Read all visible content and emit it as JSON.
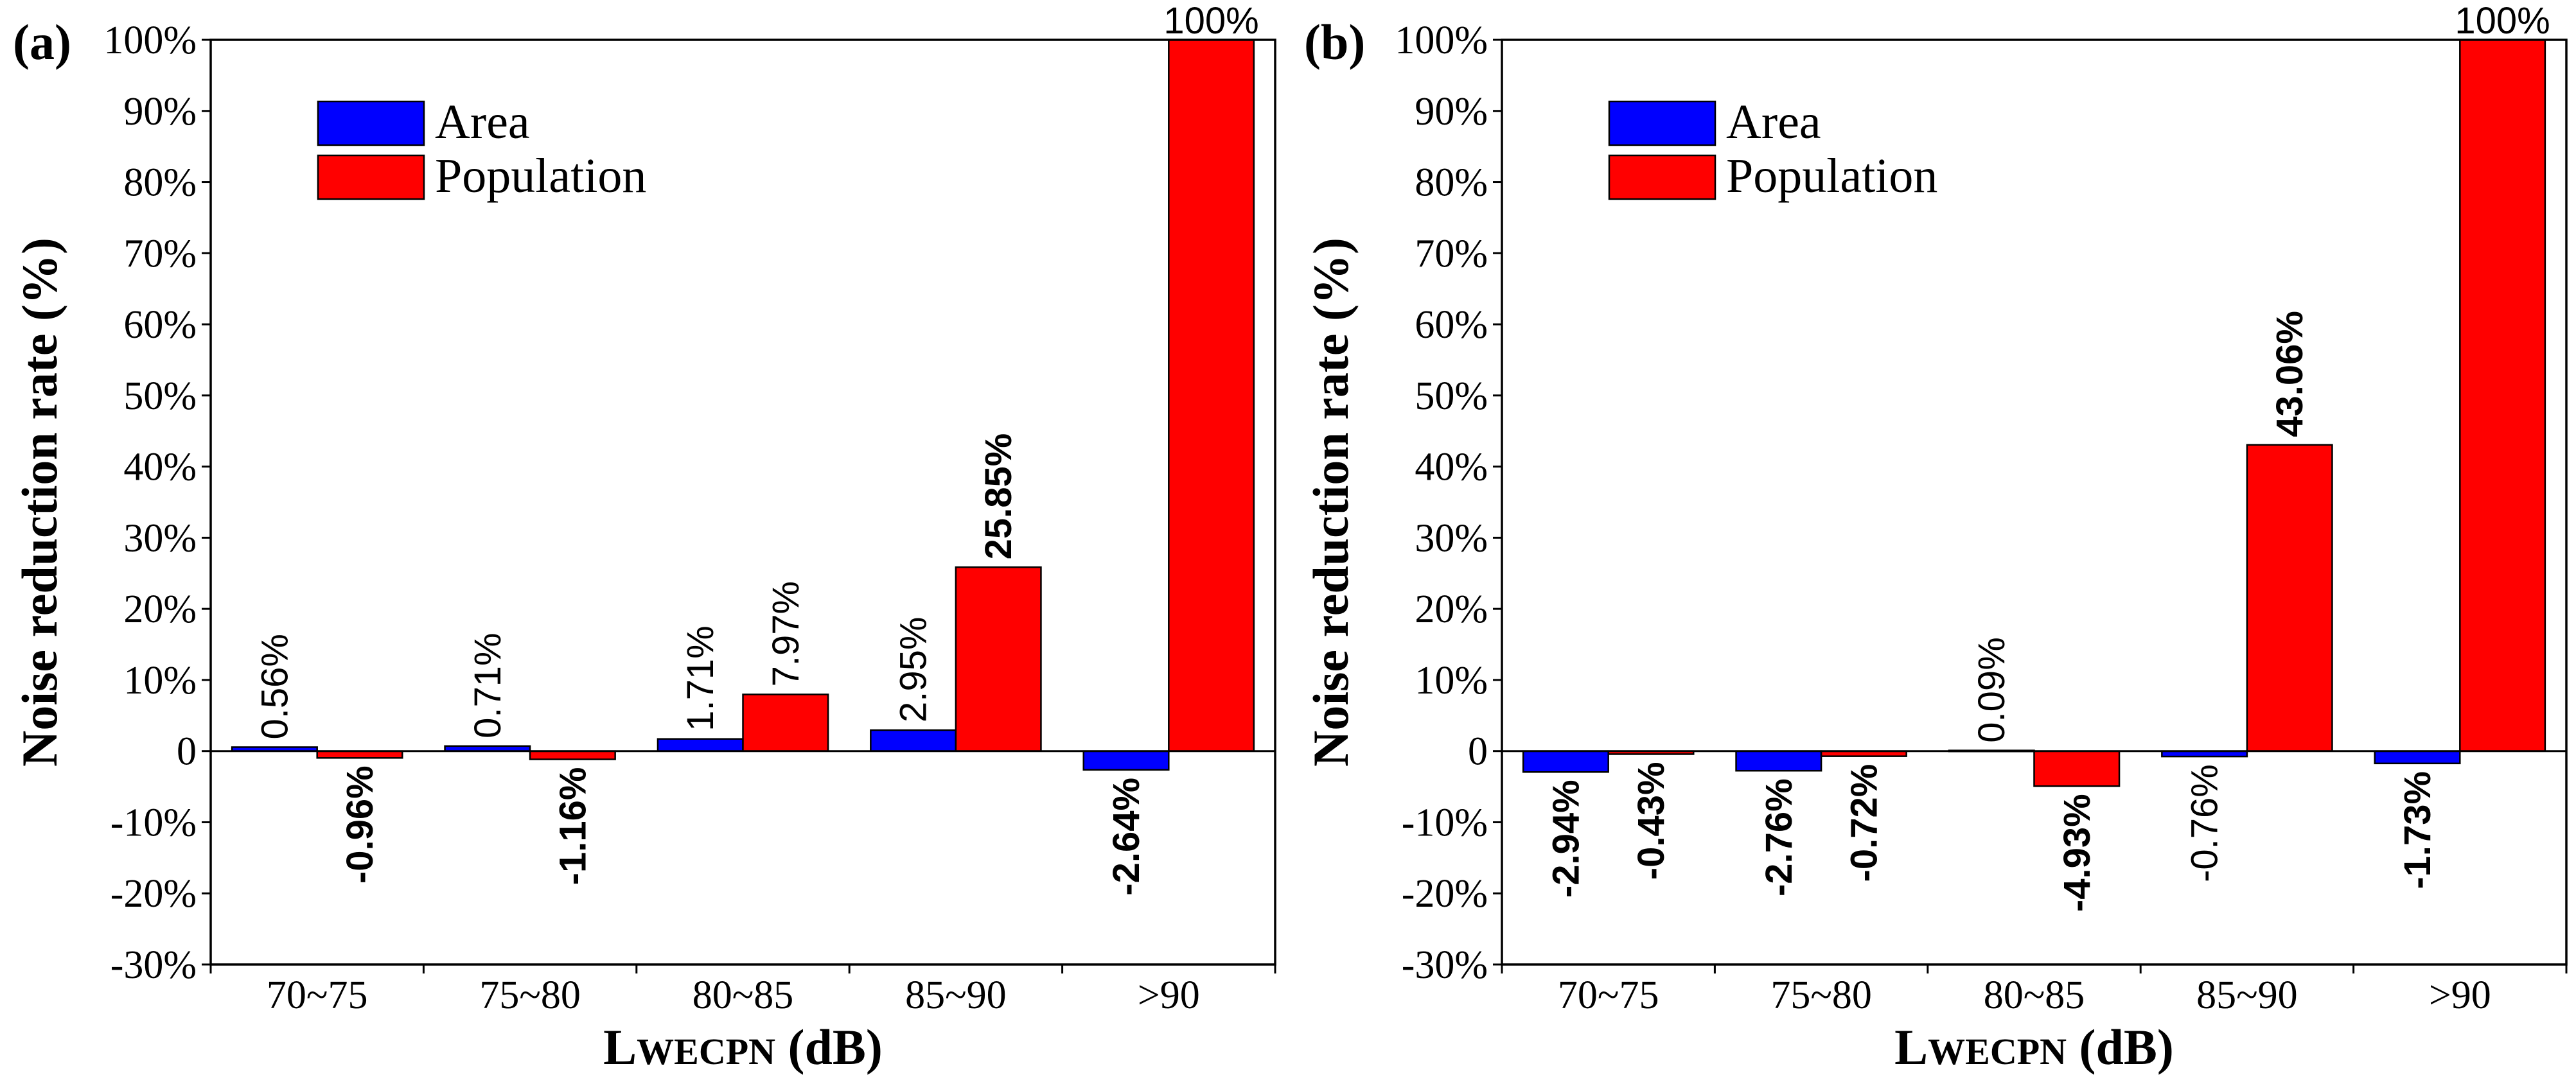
{
  "colors": {
    "area": "#0000ff",
    "population": "#ff0000",
    "axis": "#000000"
  },
  "chart_data": [
    {
      "panel": "(a)",
      "type": "bar",
      "categories": [
        "70~75",
        "75~80",
        "80~85",
        "85~90",
        ">90"
      ],
      "series": [
        {
          "name": "Area",
          "values": [
            0.56,
            0.71,
            1.71,
            2.95,
            -2.64
          ],
          "labels": [
            "0.56%",
            "0.71%",
            "1.71%",
            "2.95%",
            "-2.64%"
          ],
          "label_bold": [
            false,
            false,
            false,
            false,
            true
          ]
        },
        {
          "name": "Population",
          "values": [
            -0.96,
            -1.16,
            7.97,
            25.85,
            100
          ],
          "labels": [
            "-0.96%",
            "-1.16%",
            "7.97%",
            "25.85%",
            "100%"
          ],
          "label_bold": [
            true,
            true,
            false,
            true,
            false
          ]
        }
      ],
      "ylim": [
        -30,
        100
      ],
      "yticks": [
        -30,
        -20,
        -10,
        0,
        10,
        20,
        30,
        40,
        50,
        60,
        70,
        80,
        90,
        100
      ],
      "ytick_labels": [
        "-30%",
        "-20%",
        "-10%",
        "0",
        "10%",
        "20%",
        "30%",
        "40%",
        "50%",
        "60%",
        "70%",
        "80%",
        "90%",
        "100%"
      ],
      "ylabel": "Noise reduction rate (%)",
      "xlabel_main": "L",
      "xlabel_sub": "WECPN",
      "xlabel_unit": " (dB)",
      "legend": [
        "Area",
        "Population"
      ],
      "legend_position": "top-left"
    },
    {
      "panel": "(b)",
      "type": "bar",
      "categories": [
        "70~75",
        "75~80",
        "80~85",
        "85~90",
        ">90"
      ],
      "series": [
        {
          "name": "Area",
          "values": [
            -2.94,
            -2.76,
            0.09,
            -0.76,
            -1.73
          ],
          "labels": [
            "-2.94%",
            "-2.76%",
            "0.09%",
            "-0.76%",
            "-1.73%"
          ],
          "label_bold": [
            true,
            true,
            false,
            false,
            true
          ]
        },
        {
          "name": "Population",
          "values": [
            -0.43,
            -0.72,
            -4.93,
            43.06,
            100
          ],
          "labels": [
            "-0.43%",
            "-0.72%",
            "-4.93%",
            "43.06%",
            "100%"
          ],
          "label_bold": [
            true,
            true,
            true,
            true,
            false
          ]
        }
      ],
      "ylim": [
        -30,
        100
      ],
      "yticks": [
        -30,
        -20,
        -10,
        0,
        10,
        20,
        30,
        40,
        50,
        60,
        70,
        80,
        90,
        100
      ],
      "ytick_labels": [
        "-30%",
        "-20%",
        "-10%",
        "0",
        "10%",
        "20%",
        "30%",
        "40%",
        "50%",
        "60%",
        "70%",
        "80%",
        "90%",
        "100%"
      ],
      "ylabel": "Noise reduction rate (%)",
      "xlabel_main": "L",
      "xlabel_sub": "WECPN",
      "xlabel_unit": " (dB)",
      "legend": [
        "Area",
        "Population"
      ],
      "legend_position": "top-left"
    }
  ]
}
